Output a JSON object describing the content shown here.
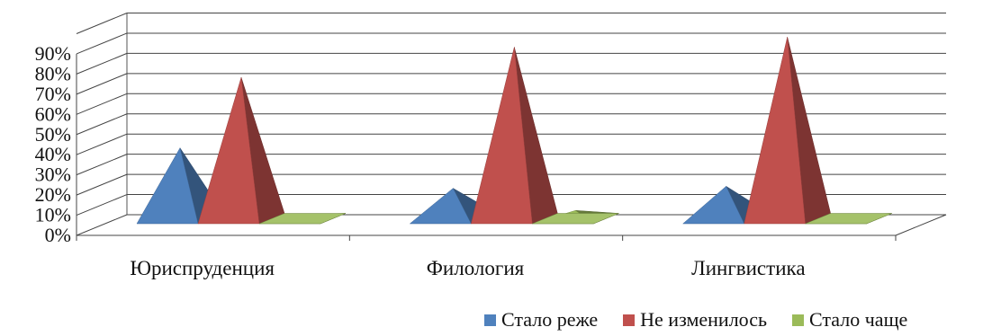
{
  "chart_data": {
    "type": "bar",
    "style": "3d-pyramid",
    "categories": [
      "Юриспруденция",
      "Филология",
      "Лингвистика"
    ],
    "series": [
      {
        "name": "Стало реже",
        "color": "#4f81bd",
        "values": [
          35,
          15,
          16
        ]
      },
      {
        "name": "Не изменилось",
        "color": "#c0504d",
        "values": [
          70,
          85,
          90
        ]
      },
      {
        "name": "Стало чаще",
        "color": "#9bbb59",
        "values": [
          2,
          4,
          2
        ]
      }
    ],
    "y_ticks": [
      "0%",
      "10%",
      "20%",
      "30%",
      "40%",
      "50%",
      "60%",
      "70%",
      "80%",
      "90%"
    ],
    "ylim": [
      0,
      100
    ],
    "grid": true,
    "legend_position": "bottom-right"
  }
}
